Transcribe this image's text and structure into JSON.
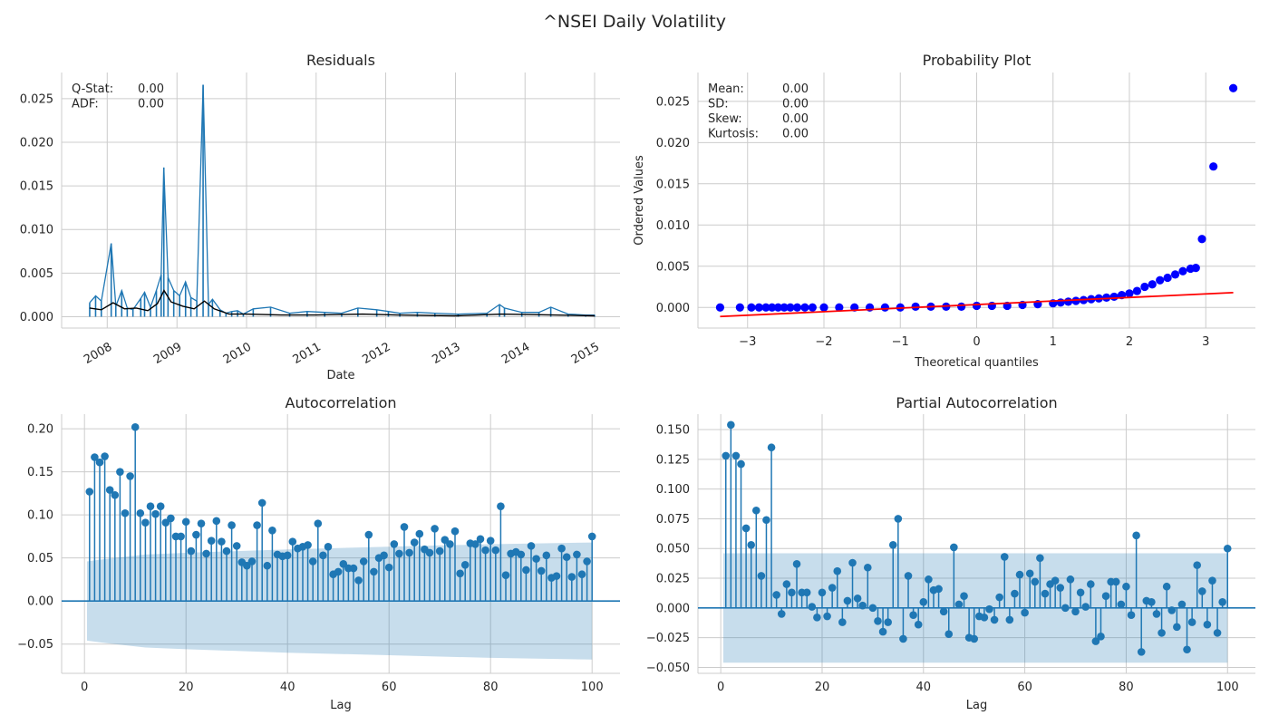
{
  "figure": {
    "title": "^NSEI Daily Volatility"
  },
  "chart_data": [
    {
      "panel": "residuals",
      "type": "line",
      "title": "Residuals",
      "xlabel": "Date",
      "ylabel": "",
      "x_range": [
        "2007-09-17",
        "2015-01-01"
      ],
      "ylim": [
        -0.0013,
        0.028
      ],
      "x_ticks": [
        "2008-01-01",
        "2009-01-01",
        "2010-01-01",
        "2011-01-01",
        "2012-01-01",
        "2013-01-01",
        "2014-01-01",
        "2015-01-01"
      ],
      "x_tick_labels": [
        "2008",
        "2009",
        "2010",
        "2011",
        "2012",
        "2013",
        "2014",
        "2015"
      ],
      "y_ticks": [
        0.0,
        0.005,
        0.01,
        0.015,
        0.02,
        0.025
      ],
      "y_tick_labels": [
        "0.000",
        "0.005",
        "0.010",
        "0.015",
        "0.020",
        "0.025"
      ],
      "grid": true,
      "annotations": [
        {
          "label": "Q-Stat:",
          "value": "0.00"
        },
        {
          "label": "ADF:",
          "value": "0.00"
        }
      ],
      "series": [
        {
          "role": "residuals",
          "color": "#1f77b4",
          "points": [
            [
              "2007-10-01",
              0.0016
            ],
            [
              "2007-11-01",
              0.0024
            ],
            [
              "2007-12-01",
              0.0018
            ],
            [
              "2008-01-22",
              0.0084
            ],
            [
              "2008-02-15",
              0.0012
            ],
            [
              "2008-03-17",
              0.003
            ],
            [
              "2008-04-15",
              0.001
            ],
            [
              "2008-05-15",
              0.0008
            ],
            [
              "2008-06-25",
              0.0021
            ],
            [
              "2008-07-15",
              0.0028
            ],
            [
              "2008-08-15",
              0.0011
            ],
            [
              "2008-09-15",
              0.003
            ],
            [
              "2008-10-10",
              0.0048
            ],
            [
              "2008-10-24",
              0.0171
            ],
            [
              "2008-11-15",
              0.0045
            ],
            [
              "2008-12-15",
              0.003
            ],
            [
              "2009-01-15",
              0.0024
            ],
            [
              "2009-02-15",
              0.004
            ],
            [
              "2009-03-15",
              0.0022
            ],
            [
              "2009-04-15",
              0.0018
            ],
            [
              "2009-05-18",
              0.0266
            ],
            [
              "2009-06-15",
              0.0014
            ],
            [
              "2009-07-06",
              0.002
            ],
            [
              "2009-08-15",
              0.0008
            ],
            [
              "2009-09-15",
              0.0004
            ],
            [
              "2009-10-15",
              0.0006
            ],
            [
              "2009-11-15",
              0.0007
            ],
            [
              "2009-12-15",
              0.0003
            ],
            [
              "2010-02-05",
              0.0009
            ],
            [
              "2010-05-07",
              0.0011
            ],
            [
              "2010-08-15",
              0.0004
            ],
            [
              "2010-11-15",
              0.0006
            ],
            [
              "2011-02-15",
              0.0005
            ],
            [
              "2011-05-15",
              0.0004
            ],
            [
              "2011-08-08",
              0.001
            ],
            [
              "2011-11-15",
              0.0008
            ],
            [
              "2012-01-15",
              0.0006
            ],
            [
              "2012-03-15",
              0.0004
            ],
            [
              "2012-06-15",
              0.0005
            ],
            [
              "2012-09-15",
              0.0004
            ],
            [
              "2013-01-15",
              0.0003
            ],
            [
              "2013-06-15",
              0.0004
            ],
            [
              "2013-08-20",
              0.0014
            ],
            [
              "2013-09-15",
              0.001
            ],
            [
              "2013-12-15",
              0.0005
            ],
            [
              "2014-03-15",
              0.0005
            ],
            [
              "2014-05-16",
              0.0011
            ],
            [
              "2014-08-15",
              0.0003
            ],
            [
              "2014-11-15",
              0.0002
            ],
            [
              "2015-01-01",
              0.0002
            ]
          ]
        },
        {
          "role": "rolling mean",
          "color": "#000000",
          "points": [
            [
              "2007-10-01",
              0.001
            ],
            [
              "2007-12-01",
              0.0008
            ],
            [
              "2008-02-01",
              0.0016
            ],
            [
              "2008-04-01",
              0.0009
            ],
            [
              "2008-06-01",
              0.001
            ],
            [
              "2008-08-01",
              0.0007
            ],
            [
              "2008-09-20",
              0.0015
            ],
            [
              "2008-10-25",
              0.003
            ],
            [
              "2008-12-01",
              0.0017
            ],
            [
              "2009-02-01",
              0.0012
            ],
            [
              "2009-04-01",
              0.0009
            ],
            [
              "2009-05-25",
              0.0018
            ],
            [
              "2009-07-15",
              0.0009
            ],
            [
              "2009-10-01",
              0.0003
            ],
            [
              "2010-01-01",
              0.0003
            ],
            [
              "2010-07-01",
              0.0002
            ],
            [
              "2011-01-01",
              0.0002
            ],
            [
              "2011-09-01",
              0.0003
            ],
            [
              "2012-03-01",
              0.0002
            ],
            [
              "2013-01-01",
              0.0001
            ],
            [
              "2013-09-01",
              0.0003
            ],
            [
              "2014-06-01",
              0.0002
            ],
            [
              "2015-01-01",
              0.0001
            ]
          ]
        }
      ]
    },
    {
      "panel": "probability-plot",
      "type": "scatter",
      "title": "Probability Plot",
      "xlabel": "Theoretical quantiles",
      "ylabel": "Ordered Values",
      "xlim": [
        -3.65,
        3.65
      ],
      "ylim": [
        -0.0025,
        0.0285
      ],
      "x_ticks": [
        -3,
        -2,
        -1,
        0,
        1,
        2,
        3
      ],
      "x_tick_labels": [
        "−3",
        "−2",
        "−1",
        "0",
        "1",
        "2",
        "3"
      ],
      "y_ticks": [
        0.0,
        0.005,
        0.01,
        0.015,
        0.02,
        0.025
      ],
      "y_tick_labels": [
        "0.000",
        "0.005",
        "0.010",
        "0.015",
        "0.020",
        "0.025"
      ],
      "grid": true,
      "annotations": [
        {
          "label": "Mean:",
          "value": "0.00"
        },
        {
          "label": "SD:",
          "value": "0.00"
        },
        {
          "label": "Skew:",
          "value": "0.00"
        },
        {
          "label": "Kurtosis:",
          "value": "0.00"
        }
      ],
      "points_color": "#0000ff",
      "fit_color": "#ff0000",
      "points": [
        [
          -3.36,
          0.0
        ],
        [
          -3.1,
          0.0
        ],
        [
          -2.95,
          0.0
        ],
        [
          -2.85,
          0.0
        ],
        [
          -2.76,
          0.0
        ],
        [
          -2.68,
          0.0
        ],
        [
          -2.6,
          0.0
        ],
        [
          -2.52,
          0.0
        ],
        [
          -2.44,
          0.0
        ],
        [
          -2.35,
          0.0
        ],
        [
          -2.25,
          0.0
        ],
        [
          -2.15,
          0.0
        ],
        [
          -2.0,
          0.0
        ],
        [
          -1.8,
          0.0
        ],
        [
          -1.6,
          0.0
        ],
        [
          -1.4,
          0.0
        ],
        [
          -1.2,
          0.0
        ],
        [
          -1.0,
          0.0
        ],
        [
          -0.8,
          0.0001
        ],
        [
          -0.6,
          0.0001
        ],
        [
          -0.4,
          0.0001
        ],
        [
          -0.2,
          0.0001
        ],
        [
          0.0,
          0.0002
        ],
        [
          0.2,
          0.0002
        ],
        [
          0.4,
          0.0002
        ],
        [
          0.6,
          0.0003
        ],
        [
          0.8,
          0.0004
        ],
        [
          1.0,
          0.0005
        ],
        [
          1.1,
          0.0006
        ],
        [
          1.2,
          0.0007
        ],
        [
          1.3,
          0.0008
        ],
        [
          1.4,
          0.0009
        ],
        [
          1.5,
          0.001
        ],
        [
          1.6,
          0.0011
        ],
        [
          1.7,
          0.0012
        ],
        [
          1.8,
          0.0013
        ],
        [
          1.9,
          0.0015
        ],
        [
          2.0,
          0.0017
        ],
        [
          2.1,
          0.002
        ],
        [
          2.2,
          0.0025
        ],
        [
          2.3,
          0.0028
        ],
        [
          2.4,
          0.0033
        ],
        [
          2.5,
          0.0036
        ],
        [
          2.6,
          0.004
        ],
        [
          2.7,
          0.0044
        ],
        [
          2.8,
          0.0047
        ],
        [
          2.87,
          0.0048
        ],
        [
          2.95,
          0.0083
        ],
        [
          3.1,
          0.0171
        ],
        [
          3.36,
          0.0266
        ]
      ],
      "fit_line": [
        [
          -3.36,
          -0.0011
        ],
        [
          3.36,
          0.0018
        ]
      ]
    },
    {
      "panel": "autocorrelation",
      "type": "stem",
      "title": "Autocorrelation",
      "xlabel": "Lag",
      "ylabel": "",
      "xlim": [
        -4.5,
        105.5
      ],
      "ylim": [
        -0.084,
        0.217
      ],
      "x_ticks": [
        0,
        20,
        40,
        60,
        80,
        100
      ],
      "x_tick_labels": [
        "0",
        "20",
        "40",
        "60",
        "80",
        "100"
      ],
      "y_ticks": [
        -0.05,
        0.0,
        0.05,
        0.1,
        0.15,
        0.2
      ],
      "y_tick_labels": [
        "−0.05",
        "0.00",
        "0.05",
        "0.10",
        "0.15",
        "0.20"
      ],
      "grid": true,
      "color": "#1f77b4",
      "band_color": "#1f77b4",
      "confidence_band": [
        [
          0.5,
          0.046
        ],
        [
          3,
          0.048
        ],
        [
          6,
          0.05
        ],
        [
          9,
          0.052
        ],
        [
          12,
          0.054
        ],
        [
          20,
          0.056
        ],
        [
          40,
          0.06
        ],
        [
          60,
          0.063
        ],
        [
          80,
          0.066
        ],
        [
          100,
          0.068
        ]
      ],
      "values": [
        0.127,
        0.167,
        0.161,
        0.168,
        0.129,
        0.123,
        0.15,
        0.102,
        0.145,
        0.202,
        0.102,
        0.091,
        0.11,
        0.101,
        0.11,
        0.091,
        0.096,
        0.075,
        0.075,
        0.092,
        0.058,
        0.077,
        0.09,
        0.055,
        0.07,
        0.093,
        0.069,
        0.058,
        0.088,
        0.064,
        0.045,
        0.041,
        0.046,
        0.088,
        0.114,
        0.041,
        0.082,
        0.054,
        0.052,
        0.053,
        0.069,
        0.061,
        0.063,
        0.065,
        0.046,
        0.09,
        0.053,
        0.063,
        0.031,
        0.034,
        0.043,
        0.038,
        0.038,
        0.024,
        0.046,
        0.077,
        0.034,
        0.05,
        0.053,
        0.039,
        0.066,
        0.055,
        0.086,
        0.056,
        0.068,
        0.078,
        0.06,
        0.056,
        0.084,
        0.058,
        0.071,
        0.066,
        0.081,
        0.032,
        0.042,
        0.067,
        0.066,
        0.072,
        0.059,
        0.07,
        0.059,
        0.11,
        0.03,
        0.055,
        0.057,
        0.054,
        0.036,
        0.064,
        0.049,
        0.035,
        0.053,
        0.027,
        0.029,
        0.061,
        0.051,
        0.028,
        0.054,
        0.031,
        0.046,
        0.075
      ]
    },
    {
      "panel": "partial-autocorrelation",
      "type": "stem",
      "title": "Partial Autocorrelation",
      "xlabel": "Lag",
      "ylabel": "",
      "xlim": [
        -4.5,
        105.5
      ],
      "ylim": [
        -0.055,
        0.163
      ],
      "x_ticks": [
        0,
        20,
        40,
        60,
        80,
        100
      ],
      "x_tick_labels": [
        "0",
        "20",
        "40",
        "60",
        "80",
        "100"
      ],
      "y_ticks": [
        -0.05,
        -0.025,
        0.0,
        0.025,
        0.05,
        0.075,
        0.1,
        0.125,
        0.15
      ],
      "y_tick_labels": [
        "−0.050",
        "−0.025",
        "0.000",
        "0.025",
        "0.050",
        "0.075",
        "0.100",
        "0.125",
        "0.150"
      ],
      "grid": true,
      "color": "#1f77b4",
      "band_color": "#1f77b4",
      "confidence_band": [
        [
          0.5,
          0.046
        ],
        [
          100,
          0.046
        ]
      ],
      "values": [
        0.128,
        0.154,
        0.128,
        0.121,
        0.067,
        0.053,
        0.082,
        0.027,
        0.074,
        0.135,
        0.011,
        -0.005,
        0.02,
        0.013,
        0.037,
        0.013,
        0.013,
        0.001,
        -0.008,
        0.013,
        -0.007,
        0.017,
        0.031,
        -0.012,
        0.006,
        0.038,
        0.008,
        0.002,
        0.034,
        0.0,
        -0.011,
        -0.02,
        -0.012,
        0.053,
        0.075,
        -0.026,
        0.027,
        -0.006,
        -0.014,
        0.005,
        0.024,
        0.015,
        0.016,
        -0.003,
        -0.022,
        0.051,
        0.003,
        0.01,
        -0.025,
        -0.026,
        -0.007,
        -0.008,
        -0.001,
        -0.01,
        0.009,
        0.043,
        -0.01,
        0.012,
        0.028,
        -0.004,
        0.029,
        0.022,
        0.042,
        0.012,
        0.02,
        0.023,
        0.017,
        0.0,
        0.024,
        -0.003,
        0.013,
        0.001,
        0.02,
        -0.028,
        -0.024,
        0.01,
        0.022,
        0.022,
        0.003,
        0.018,
        -0.006,
        0.061,
        -0.037,
        0.006,
        0.005,
        -0.005,
        -0.021,
        0.018,
        -0.002,
        -0.016,
        0.003,
        -0.035,
        -0.012,
        0.036,
        0.014,
        -0.014,
        0.023,
        -0.021,
        0.005,
        0.05
      ]
    }
  ]
}
